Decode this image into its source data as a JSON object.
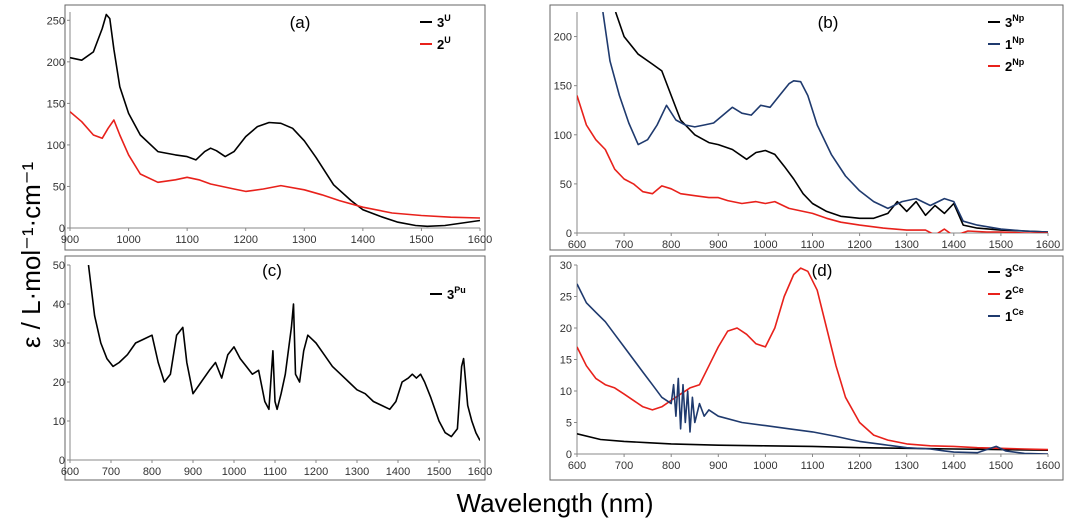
{
  "figure": {
    "ylabel": "ε / L·mol⁻¹·cm⁻¹",
    "xlabel": "Wavelength (nm)"
  },
  "chart_data": [
    {
      "type": "line",
      "panel_label": "(a)",
      "xlim": [
        900,
        1600
      ],
      "ylim": [
        0,
        260
      ],
      "xticks": [
        900,
        1000,
        1100,
        1200,
        1300,
        1400,
        1500,
        1600
      ],
      "yticks": [
        0,
        50,
        100,
        150,
        200,
        250
      ],
      "grid": false,
      "legend_position": "top-right",
      "series": [
        {
          "name": "3",
          "sup": "U",
          "color": "#000000",
          "x": [
            900,
            920,
            940,
            955,
            962,
            968,
            975,
            985,
            1000,
            1020,
            1050,
            1080,
            1100,
            1115,
            1130,
            1140,
            1150,
            1165,
            1180,
            1200,
            1220,
            1240,
            1260,
            1280,
            1300,
            1320,
            1350,
            1380,
            1400,
            1430,
            1460,
            1490,
            1510,
            1540,
            1570,
            1600
          ],
          "y": [
            205,
            202,
            212,
            240,
            257,
            252,
            215,
            170,
            138,
            112,
            92,
            88,
            86,
            82,
            92,
            96,
            93,
            86,
            92,
            110,
            122,
            127,
            126,
            120,
            105,
            85,
            52,
            33,
            22,
            14,
            7,
            3,
            2,
            3,
            6,
            9
          ]
        },
        {
          "name": "2",
          "sup": "U",
          "color": "#e8211b",
          "x": [
            900,
            920,
            940,
            955,
            965,
            975,
            985,
            1000,
            1020,
            1050,
            1080,
            1100,
            1120,
            1140,
            1160,
            1180,
            1200,
            1230,
            1260,
            1300,
            1330,
            1360,
            1400,
            1450,
            1500,
            1550,
            1600
          ],
          "y": [
            140,
            128,
            112,
            108,
            120,
            130,
            112,
            88,
            65,
            55,
            58,
            61,
            58,
            53,
            50,
            47,
            44,
            47,
            51,
            46,
            40,
            33,
            25,
            18,
            15,
            13,
            12
          ]
        }
      ]
    },
    {
      "type": "line",
      "panel_label": "(b)",
      "xlim": [
        600,
        1600
      ],
      "ylim": [
        0,
        225
      ],
      "xticks": [
        600,
        700,
        800,
        900,
        1000,
        1100,
        1200,
        1300,
        1400,
        1500,
        1600
      ],
      "yticks": [
        0,
        50,
        100,
        150,
        200
      ],
      "grid": false,
      "legend_position": "top-right",
      "series": [
        {
          "name": "3",
          "sup": "Np",
          "color": "#000000",
          "x": [
            682,
            700,
            730,
            760,
            780,
            800,
            820,
            850,
            880,
            900,
            930,
            960,
            980,
            1000,
            1020,
            1040,
            1060,
            1080,
            1100,
            1130,
            1160,
            1200,
            1230,
            1260,
            1280,
            1300,
            1320,
            1340,
            1360,
            1380,
            1400,
            1420,
            1450,
            1500,
            1550,
            1600
          ],
          "y": [
            225,
            200,
            182,
            172,
            165,
            140,
            115,
            100,
            92,
            90,
            85,
            75,
            82,
            84,
            80,
            68,
            55,
            40,
            30,
            22,
            17,
            15,
            15,
            20,
            32,
            22,
            32,
            18,
            28,
            20,
            30,
            8,
            5,
            3,
            2,
            1
          ]
        },
        {
          "name": "1",
          "sup": "Np",
          "color": "#1f3a6e",
          "x": [
            655,
            670,
            690,
            710,
            730,
            750,
            770,
            790,
            810,
            830,
            850,
            870,
            890,
            910,
            930,
            950,
            970,
            990,
            1010,
            1030,
            1050,
            1060,
            1075,
            1090,
            1110,
            1140,
            1170,
            1200,
            1230,
            1260,
            1290,
            1320,
            1350,
            1380,
            1400,
            1420,
            1450,
            1500,
            1550,
            1600
          ],
          "y": [
            225,
            175,
            140,
            112,
            90,
            95,
            110,
            130,
            115,
            110,
            108,
            110,
            112,
            120,
            128,
            122,
            120,
            130,
            128,
            140,
            152,
            155,
            154,
            140,
            110,
            80,
            58,
            43,
            32,
            25,
            32,
            35,
            28,
            35,
            32,
            12,
            8,
            4,
            2,
            1
          ]
        },
        {
          "name": "2",
          "sup": "Np",
          "color": "#e8211b",
          "x": [
            600,
            620,
            640,
            660,
            680,
            700,
            720,
            740,
            760,
            780,
            800,
            820,
            850,
            880,
            900,
            920,
            950,
            980,
            1000,
            1020,
            1050,
            1080,
            1100,
            1130,
            1160,
            1200,
            1250,
            1300,
            1340,
            1360,
            1380,
            1400,
            1430,
            1470,
            1500,
            1550,
            1600
          ],
          "y": [
            140,
            110,
            95,
            85,
            65,
            55,
            50,
            42,
            40,
            48,
            45,
            40,
            38,
            36,
            36,
            33,
            30,
            32,
            30,
            32,
            25,
            22,
            20,
            15,
            11,
            8,
            5,
            3,
            3,
            -2,
            4,
            -3,
            2,
            1,
            1,
            0,
            0
          ]
        }
      ]
    },
    {
      "type": "line",
      "panel_label": "(c)",
      "xlim": [
        600,
        1600
      ],
      "ylim": [
        0,
        50
      ],
      "xticks": [
        600,
        700,
        800,
        900,
        1000,
        1100,
        1200,
        1300,
        1400,
        1500,
        1600
      ],
      "yticks": [
        0,
        10,
        20,
        30,
        40,
        50
      ],
      "grid": false,
      "legend_position": "top-right",
      "series": [
        {
          "name": "3",
          "sup": "Pu",
          "color": "#000000",
          "x": [
            645,
            660,
            675,
            690,
            705,
            720,
            740,
            760,
            780,
            800,
            815,
            830,
            845,
            860,
            875,
            885,
            900,
            920,
            940,
            955,
            970,
            985,
            1000,
            1015,
            1030,
            1045,
            1060,
            1075,
            1085,
            1095,
            1100,
            1105,
            1115,
            1125,
            1140,
            1145,
            1150,
            1160,
            1170,
            1180,
            1190,
            1200,
            1220,
            1240,
            1260,
            1280,
            1300,
            1320,
            1340,
            1360,
            1380,
            1395,
            1410,
            1425,
            1435,
            1445,
            1455,
            1465,
            1480,
            1500,
            1515,
            1530,
            1545,
            1555,
            1560,
            1570,
            1580,
            1590,
            1600
          ],
          "y": [
            50,
            37,
            30,
            26,
            24,
            25,
            27,
            30,
            31,
            32,
            25,
            20,
            22,
            32,
            34,
            25,
            17,
            20,
            23,
            25,
            21,
            27,
            29,
            26,
            24,
            22,
            23,
            15,
            13,
            28,
            15,
            13,
            17,
            22,
            34,
            40,
            22,
            20,
            28,
            32,
            31,
            30,
            27,
            24,
            22,
            20,
            18,
            17,
            15,
            14,
            13,
            15,
            20,
            21,
            22,
            21,
            22,
            20,
            16,
            10,
            7,
            6,
            8,
            24,
            26,
            14,
            10,
            7,
            5
          ]
        }
      ]
    },
    {
      "type": "line",
      "panel_label": "(d)",
      "xlim": [
        600,
        1600
      ],
      "ylim": [
        0,
        30
      ],
      "xticks": [
        600,
        700,
        800,
        900,
        1000,
        1100,
        1200,
        1300,
        1400,
        1500,
        1600
      ],
      "yticks": [
        0,
        5,
        10,
        15,
        20,
        25,
        30
      ],
      "grid": false,
      "legend_position": "top-right",
      "series": [
        {
          "name": "3",
          "sup": "Ce",
          "color": "#000000",
          "x": [
            600,
            650,
            700,
            750,
            800,
            900,
            1000,
            1100,
            1200,
            1300,
            1400,
            1500,
            1600
          ],
          "y": [
            3.2,
            2.3,
            2.0,
            1.8,
            1.6,
            1.4,
            1.3,
            1.2,
            1.0,
            0.9,
            0.8,
            0.7,
            0.6
          ]
        },
        {
          "name": "2",
          "sup": "Ce",
          "color": "#e8211b",
          "x": [
            600,
            620,
            640,
            660,
            680,
            700,
            720,
            740,
            760,
            780,
            800,
            820,
            840,
            860,
            880,
            900,
            920,
            940,
            960,
            980,
            1000,
            1020,
            1040,
            1060,
            1075,
            1090,
            1110,
            1130,
            1150,
            1170,
            1200,
            1230,
            1260,
            1300,
            1350,
            1400,
            1450,
            1500,
            1550,
            1600
          ],
          "y": [
            17,
            14,
            12,
            11,
            10.5,
            9.5,
            8.5,
            7.5,
            7,
            7.5,
            8.5,
            9.5,
            10.5,
            11,
            14,
            17,
            19.5,
            20,
            19,
            17.5,
            17,
            20,
            25,
            28.5,
            29.5,
            29,
            26,
            20,
            14,
            9,
            5,
            3,
            2.2,
            1.6,
            1.3,
            1.2,
            1.0,
            0.9,
            0.8,
            0.7
          ]
        },
        {
          "name": "1",
          "sup": "Ce",
          "color": "#1f3a6e",
          "x": [
            600,
            620,
            640,
            660,
            680,
            700,
            720,
            740,
            760,
            780,
            800,
            805,
            810,
            815,
            820,
            825,
            830,
            835,
            840,
            845,
            850,
            860,
            870,
            880,
            900,
            950,
            1000,
            1050,
            1100,
            1150,
            1180,
            1200,
            1250,
            1300,
            1350,
            1380,
            1400,
            1450,
            1490,
            1510,
            1550,
            1600
          ],
          "y": [
            27,
            24,
            22.5,
            21,
            19,
            17,
            15,
            13,
            11,
            9,
            8,
            11,
            6,
            12,
            4,
            11,
            5,
            10,
            3.5,
            9,
            5,
            8,
            6,
            7,
            6,
            5,
            4.5,
            4,
            3.5,
            2.8,
            2.3,
            2,
            1.5,
            1,
            0.8,
            0.5,
            0.3,
            0.2,
            1.2,
            0.5,
            0.1,
            0
          ]
        }
      ]
    }
  ]
}
